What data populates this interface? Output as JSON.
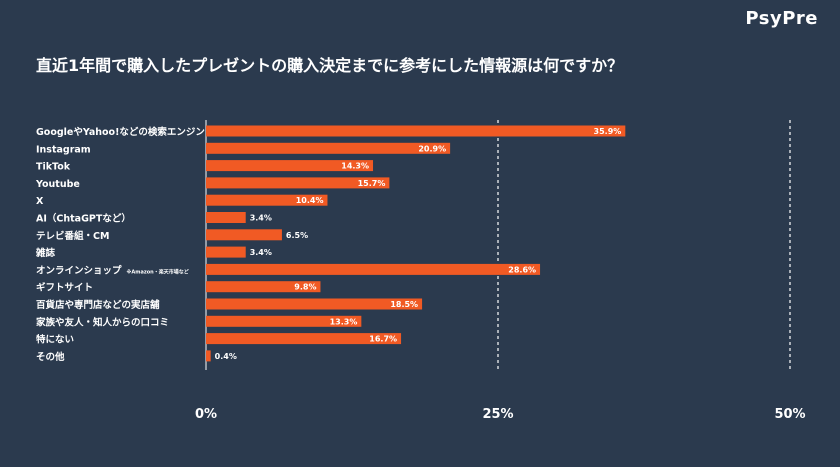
{
  "brand": {
    "logo_text": "PsyPre"
  },
  "title": "直近1年間で購入したプレゼントの購入決定までに参考にした情報源は何ですか？",
  "colors": {
    "background": "#2b3a4e",
    "bar": "#f15a24",
    "text": "#ffffff",
    "grid": "#ffffff"
  },
  "chart_data": {
    "type": "bar",
    "orientation": "horizontal",
    "title": "直近1年間で購入したプレゼントの購入決定までに参考にした情報源は何ですか？",
    "categories": [
      "GoogleやYahoo!などの検索エンジン",
      "Instagram",
      "TikTok",
      "Youtube",
      "X",
      "AI（ChtaGPTなど）",
      "テレビ番組・CM",
      "雑誌",
      "オンラインショップ",
      "ギフトサイト",
      "百貨店や専門店などの実店舗",
      "家族や友人・知人からの口コミ",
      "特にない",
      "その他"
    ],
    "category_notes": [
      "",
      "",
      "",
      "",
      "",
      "",
      "",
      "",
      "※Amazon・楽天市場など",
      "",
      "",
      "",
      "",
      ""
    ],
    "values": [
      35.9,
      20.9,
      14.3,
      15.7,
      10.4,
      3.4,
      6.5,
      3.4,
      28.6,
      9.8,
      18.5,
      13.3,
      16.7,
      0.4
    ],
    "value_labels": [
      "35.9%",
      "20.9%",
      "14.3%",
      "15.7%",
      "10.4%",
      "3.4%",
      "6.5%",
      "3.4%",
      "28.6%",
      "9.8%",
      "18.5%",
      "13.3%",
      "16.7%",
      "0.4%"
    ],
    "xlim": [
      0,
      50
    ],
    "ticks": [
      0,
      25,
      50
    ],
    "tick_labels": [
      "0%",
      "25%",
      "50%"
    ],
    "grid": true,
    "grid_style": "dashed"
  }
}
